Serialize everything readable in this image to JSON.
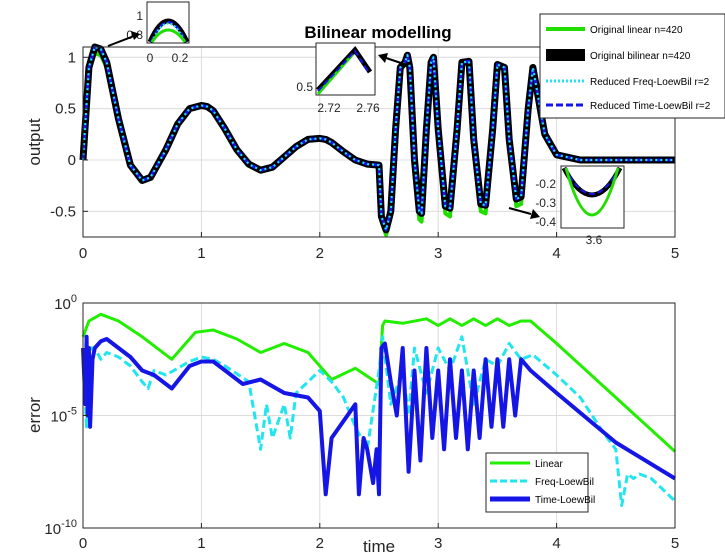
{
  "chart_data": [
    {
      "type": "line",
      "title": "Bilinear modelling",
      "ylabel": "output",
      "xlabel": "",
      "xlim": [
        0,
        5
      ],
      "ylim": [
        -0.75,
        1.1
      ],
      "xticks": [
        "0",
        "1",
        "2",
        "3",
        "4",
        "5"
      ],
      "yticks": [
        "1",
        "0.5",
        "0",
        "-0.5"
      ],
      "legend_position": "top-right",
      "legend": [
        "Original linear n=420",
        "Original bilinear n=420",
        "Reduced Freq-LoewBil r=2",
        "Reduced Time-LoewBil r=2"
      ],
      "colors": {
        "linear": "#22dd00",
        "bilinear": "#000000",
        "freq": "#22e5ee",
        "time": "#1515e6"
      },
      "grid": true,
      "series": [
        {
          "name": "Original bilinear n=420",
          "x": [
            0,
            0.05,
            0.1,
            0.15,
            0.2,
            0.3,
            0.4,
            0.5,
            0.57,
            0.7,
            0.8,
            0.9,
            1.0,
            1.05,
            1.1,
            1.2,
            1.3,
            1.4,
            1.5,
            1.6,
            1.7,
            1.8,
            1.9,
            2.0,
            2.05,
            2.1,
            2.2,
            2.3,
            2.4,
            2.5,
            2.52,
            2.56,
            2.6,
            2.64,
            2.68,
            2.72,
            2.74,
            2.76,
            2.8,
            2.84,
            2.86,
            2.9,
            2.94,
            2.96,
            3.0,
            3.06,
            3.1,
            3.16,
            3.2,
            3.26,
            3.3,
            3.36,
            3.4,
            3.46,
            3.5,
            3.56,
            3.6,
            3.66,
            3.7,
            3.76,
            3.8,
            3.9,
            4.0,
            4.2,
            5.0
          ],
          "y": [
            0.0,
            0.9,
            1.1,
            1.08,
            0.95,
            0.4,
            -0.05,
            -0.2,
            -0.17,
            0.1,
            0.35,
            0.5,
            0.53,
            0.52,
            0.48,
            0.3,
            0.1,
            -0.04,
            -0.1,
            -0.07,
            0.03,
            0.13,
            0.2,
            0.21,
            0.2,
            0.17,
            0.08,
            0.0,
            -0.04,
            -0.05,
            -0.55,
            -0.68,
            -0.5,
            0.3,
            0.9,
            0.95,
            1.02,
            0.9,
            0.0,
            -0.5,
            -0.52,
            0.3,
            0.95,
            1.0,
            0.3,
            -0.45,
            -0.47,
            0.3,
            0.95,
            0.96,
            0.2,
            -0.43,
            -0.44,
            0.3,
            0.93,
            0.9,
            0.2,
            -0.38,
            -0.36,
            0.5,
            0.9,
            0.25,
            0.05,
            0.0,
            0.0
          ]
        },
        {
          "name": "Original linear n=420",
          "x": [
            0,
            0.05,
            0.1,
            0.15,
            0.2,
            0.3,
            0.4,
            0.5,
            0.57,
            0.7,
            0.8,
            0.9,
            1.0,
            1.05,
            1.1,
            1.2,
            1.3,
            1.4,
            1.5,
            1.6,
            1.7,
            1.8,
            1.9,
            2.0,
            2.05,
            2.1,
            2.2,
            2.3,
            2.4,
            2.5,
            2.52,
            2.56,
            2.6,
            2.64,
            2.68,
            2.72,
            2.74,
            2.76,
            2.8,
            2.84,
            2.86,
            2.9,
            2.94,
            2.96,
            3.0,
            3.06,
            3.1,
            3.16,
            3.2,
            3.26,
            3.3,
            3.36,
            3.4,
            3.46,
            3.5,
            3.56,
            3.6,
            3.66,
            3.7,
            3.76,
            3.8,
            3.9,
            4.0,
            4.2,
            5.0
          ],
          "y": [
            0.0,
            0.86,
            1.04,
            1.02,
            0.9,
            0.38,
            -0.06,
            -0.2,
            -0.17,
            0.1,
            0.35,
            0.5,
            0.53,
            0.52,
            0.48,
            0.3,
            0.1,
            -0.04,
            -0.1,
            -0.07,
            0.03,
            0.13,
            0.2,
            0.21,
            0.2,
            0.17,
            0.08,
            0.0,
            -0.04,
            -0.05,
            -0.6,
            -0.73,
            -0.56,
            0.28,
            0.88,
            0.93,
            1.0,
            0.88,
            -0.05,
            -0.58,
            -0.6,
            0.28,
            0.93,
            0.98,
            0.28,
            -0.52,
            -0.55,
            0.28,
            0.93,
            0.94,
            0.18,
            -0.5,
            -0.52,
            0.28,
            0.9,
            0.88,
            0.15,
            -0.45,
            -0.43,
            0.48,
            0.88,
            0.23,
            0.04,
            0.0,
            0.0
          ]
        }
      ],
      "insets": [
        {
          "xticks": [
            "0",
            "0.2"
          ],
          "yticks": [
            "1",
            "0.8"
          ]
        },
        {
          "xticks": [
            "2.72",
            "2.76"
          ],
          "yticks": [
            "0.5"
          ]
        },
        {
          "xticks": [
            "3.6"
          ],
          "yticks": [
            "-0.2",
            "-0.3",
            "-0.4"
          ]
        }
      ]
    },
    {
      "type": "line",
      "title": "",
      "ylabel": "error",
      "xlabel": "time",
      "xlim": [
        0,
        5
      ],
      "ylim": [
        -10,
        0
      ],
      "yscale": "log",
      "xticks": [
        "0",
        "1",
        "2",
        "3",
        "4",
        "5"
      ],
      "yticks": [
        {
          "base": "10",
          "exp": "0",
          "value": 0
        },
        {
          "base": "10",
          "exp": "-5",
          "value": -5
        },
        {
          "base": "10",
          "exp": "-10",
          "value": -10
        }
      ],
      "legend_position": "bottom-right",
      "legend": [
        "Linear",
        "Freq-LoewBil",
        "Time-LoewBil"
      ],
      "colors": {
        "linear": "#22ee00",
        "freq": "#22e5ee",
        "time": "#1515e6"
      },
      "grid": true,
      "series": [
        {
          "name": "Linear",
          "x": [
            0,
            0.05,
            0.15,
            0.3,
            0.5,
            0.75,
            0.95,
            1.1,
            1.3,
            1.5,
            1.7,
            1.9,
            2.1,
            2.3,
            2.5,
            2.53,
            2.55,
            2.7,
            2.9,
            3.0,
            3.1,
            3.2,
            3.3,
            3.4,
            3.5,
            3.6,
            3.7,
            3.78,
            4.0,
            4.5,
            5.0
          ],
          "y": [
            -1.5,
            -0.8,
            -0.5,
            -0.8,
            -1.5,
            -2.5,
            -1.3,
            -1.2,
            -1.6,
            -2.2,
            -1.8,
            -2.2,
            -3.4,
            -2.9,
            -3.6,
            -1.0,
            -0.8,
            -0.9,
            -0.7,
            -1.0,
            -0.7,
            -1.0,
            -0.7,
            -1.0,
            -0.7,
            -1.0,
            -0.8,
            -0.8,
            -1.8,
            -4.2,
            -6.6
          ]
        },
        {
          "name": "Freq-LoewBil",
          "x": [
            0,
            0.03,
            0.05,
            0.07,
            0.1,
            0.15,
            0.2,
            0.3,
            0.4,
            0.5,
            0.55,
            0.6,
            0.7,
            0.9,
            1.0,
            1.1,
            1.2,
            1.4,
            1.5,
            1.55,
            1.6,
            1.7,
            1.75,
            1.8,
            1.9,
            2.0,
            2.1,
            2.2,
            2.3,
            2.4,
            2.5,
            2.53,
            2.6,
            2.7,
            2.75,
            2.8,
            2.9,
            3.0,
            3.1,
            3.2,
            3.3,
            3.4,
            3.5,
            3.6,
            3.7,
            3.8,
            4.0,
            4.2,
            4.4,
            4.5,
            4.55,
            4.6,
            4.65,
            4.7,
            4.8,
            5.0
          ],
          "y": [
            -2.5,
            -5.5,
            -3.0,
            -2.0,
            -2.0,
            -2.5,
            -2.2,
            -2.4,
            -2.8,
            -3.5,
            -3.8,
            -3.0,
            -3.2,
            -2.6,
            -2.4,
            -2.5,
            -2.8,
            -3.5,
            -6.5,
            -4.5,
            -6.0,
            -4.5,
            -6.0,
            -4.0,
            -3.5,
            -3.0,
            -3.5,
            -4.2,
            -5.5,
            -6.5,
            -3.0,
            -1.5,
            -4.5,
            -3.0,
            -5.0,
            -2.0,
            -4.0,
            -2.0,
            -3.0,
            -1.5,
            -4.5,
            -2.5,
            -2.8,
            -1.8,
            -2.5,
            -2.3,
            -3.2,
            -4.2,
            -5.8,
            -6.5,
            -9.0,
            -7.6,
            -7.8,
            -7.6,
            -7.8,
            -8.8
          ]
        },
        {
          "name": "Time-LoewBil",
          "x": [
            0,
            0.02,
            0.03,
            0.04,
            0.05,
            0.06,
            0.08,
            0.1,
            0.15,
            0.2,
            0.3,
            0.4,
            0.5,
            0.6,
            0.75,
            0.9,
            1.0,
            1.1,
            1.2,
            1.35,
            1.5,
            1.7,
            1.9,
            2.0,
            2.05,
            2.1,
            2.3,
            2.33,
            2.37,
            2.4,
            2.45,
            2.48,
            2.5,
            2.52,
            2.55,
            2.6,
            2.65,
            2.7,
            2.75,
            2.8,
            2.85,
            2.9,
            2.95,
            3.0,
            3.05,
            3.1,
            3.15,
            3.2,
            3.25,
            3.3,
            3.35,
            3.4,
            3.45,
            3.5,
            3.55,
            3.6,
            3.65,
            3.7,
            3.78,
            4.0,
            4.5,
            5.0
          ],
          "y": [
            -2.0,
            -4.5,
            -1.5,
            -5.0,
            -2.0,
            -5.5,
            -2.5,
            -2.0,
            -1.7,
            -1.6,
            -2.0,
            -2.4,
            -3.0,
            -3.2,
            -3.8,
            -2.8,
            -2.6,
            -2.6,
            -3.0,
            -3.6,
            -3.4,
            -4.0,
            -4.2,
            -4.8,
            -8.5,
            -6.0,
            -4.5,
            -8.5,
            -6.0,
            -6.5,
            -8.0,
            -6.5,
            -8.5,
            -2.0,
            -1.8,
            -3.5,
            -5.0,
            -2.0,
            -7.5,
            -3.0,
            -7.0,
            -2.0,
            -6.0,
            -3.0,
            -6.5,
            -2.5,
            -6.0,
            -3.0,
            -6.5,
            -3.0,
            -6.0,
            -2.5,
            -5.5,
            -2.5,
            -5.5,
            -2.5,
            -5.0,
            -2.5,
            -3.0,
            -4.0,
            -6.2,
            -7.8
          ]
        }
      ]
    }
  ]
}
